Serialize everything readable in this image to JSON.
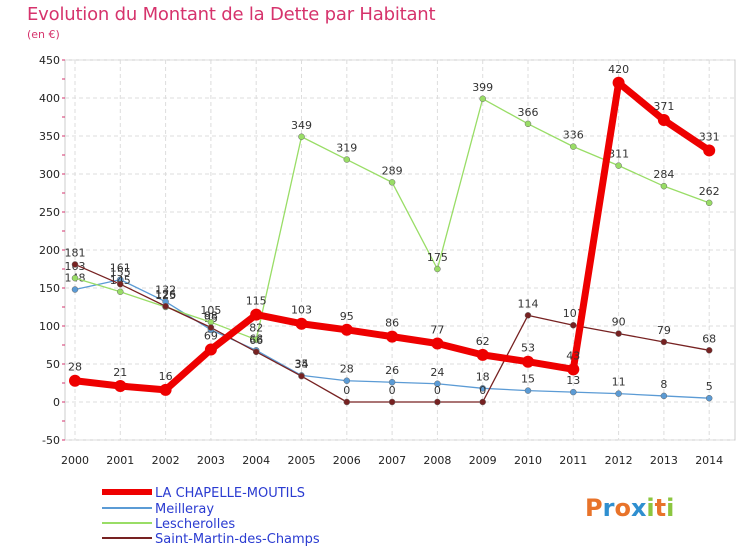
{
  "chart_data": {
    "type": "line",
    "title": "Evolution du Montant de la Dette par Habitant",
    "unit_label": "(en €)",
    "x": [
      "2000",
      "2001",
      "2002",
      "2003",
      "2004",
      "2005",
      "2006",
      "2007",
      "2008",
      "2009",
      "2010",
      "2011",
      "2012",
      "2013",
      "2014"
    ],
    "ylim": [
      -50,
      450
    ],
    "yticks": [
      -50,
      0,
      50,
      100,
      150,
      200,
      250,
      300,
      350,
      400,
      450
    ],
    "grid": true,
    "legend_position": "bottom-left",
    "series": [
      {
        "name": "LA CHAPELLE-MOUTILS",
        "color": "#ee0000",
        "values": [
          28,
          21,
          16,
          69,
          115,
          103,
          95,
          86,
          77,
          62,
          53,
          43,
          420,
          371,
          331
        ]
      },
      {
        "name": "Meilleray",
        "color": "#5b9bd5",
        "values": [
          148,
          161,
          132,
          95,
          68,
          35,
          28,
          26,
          24,
          18,
          15,
          13,
          11,
          8,
          5
        ]
      },
      {
        "name": "Lescherolles",
        "color": "#99dd66",
        "values": [
          163,
          145,
          125,
          105,
          82,
          349,
          319,
          289,
          175,
          399,
          366,
          336,
          311,
          284,
          262
        ]
      },
      {
        "name": "Saint-Martin-des-Champs",
        "color": "#772222",
        "values": [
          181,
          155,
          126,
          98,
          66,
          34,
          0,
          0,
          0,
          0,
          114,
          101,
          90,
          79,
          68
        ]
      }
    ]
  },
  "logo": {
    "text": "Proxiti",
    "letters": [
      "P",
      "r",
      "o",
      "x",
      "i",
      "t",
      "i"
    ],
    "colors": [
      "#e8732a",
      "#2f8fd0",
      "#e8732a",
      "#2f8fd0",
      "#8cc63f",
      "#e8732a",
      "#8cc63f"
    ]
  }
}
